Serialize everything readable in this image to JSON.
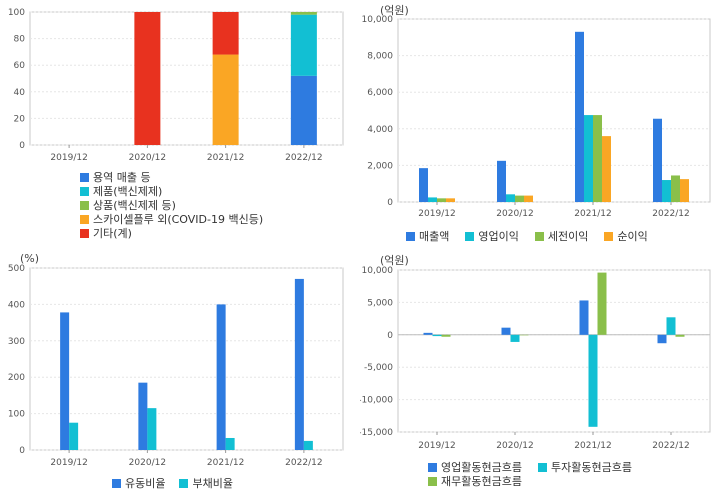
{
  "chart_data": [
    {
      "id": "chart1",
      "type": "bar",
      "stacked": true,
      "categories": [
        "2019/12",
        "2020/12",
        "2021/12",
        "2022/12"
      ],
      "ylim": [
        0,
        100
      ],
      "yticks": [
        "0",
        "20",
        "40",
        "60",
        "80",
        "100"
      ],
      "series": [
        {
          "name": "용역 매출 등",
          "color": "#2E7BE0",
          "values": [
            0,
            0,
            0,
            52
          ]
        },
        {
          "name": "제품(백신제제)",
          "color": "#12BFD3",
          "values": [
            0,
            0,
            0,
            46
          ]
        },
        {
          "name": "상품(백신제제 등)",
          "color": "#8ABF4A",
          "values": [
            0,
            0,
            0,
            2
          ]
        },
        {
          "name": "스카이셀플루 외(COVID-19 백신등)",
          "color": "#FAA624",
          "values": [
            0,
            0,
            68,
            0
          ]
        },
        {
          "name": "기타(계)",
          "color": "#E8321F",
          "values": [
            0,
            100,
            32,
            0
          ]
        }
      ],
      "legend_position": "bottom"
    },
    {
      "id": "chart2",
      "type": "bar",
      "unit": "(억원)",
      "categories": [
        "2019/12",
        "2020/12",
        "2021/12",
        "2022/12"
      ],
      "ylim": [
        0,
        10000
      ],
      "yticks": [
        "0",
        "2,000",
        "4,000",
        "6,000",
        "8,000",
        "10,000"
      ],
      "series": [
        {
          "name": "매출액",
          "color": "#2E7BE0",
          "values": [
            1850,
            2250,
            9300,
            4550
          ]
        },
        {
          "name": "영업이익",
          "color": "#12BFD3",
          "values": [
            250,
            420,
            4750,
            1200
          ]
        },
        {
          "name": "세전이익",
          "color": "#8ABF4A",
          "values": [
            200,
            350,
            4750,
            1450
          ]
        },
        {
          "name": "순이익",
          "color": "#FAA624",
          "values": [
            200,
            350,
            3600,
            1250
          ]
        }
      ],
      "legend_position": "bottom"
    },
    {
      "id": "chart3",
      "type": "bar",
      "unit": "(%)",
      "categories": [
        "2019/12",
        "2020/12",
        "2021/12",
        "2022/12"
      ],
      "ylim": [
        0,
        500
      ],
      "yticks": [
        "0",
        "100",
        "200",
        "300",
        "400",
        "500"
      ],
      "series": [
        {
          "name": "유동비율",
          "color": "#2E7BE0",
          "values": [
            378,
            185,
            400,
            470
          ]
        },
        {
          "name": "부채비율",
          "color": "#12BFD3",
          "values": [
            75,
            115,
            33,
            25
          ]
        }
      ],
      "legend_position": "bottom"
    },
    {
      "id": "chart4",
      "type": "bar",
      "unit": "(억원)",
      "categories": [
        "2019/12",
        "2020/12",
        "2021/12",
        "2022/12"
      ],
      "ylim": [
        -15000,
        10000
      ],
      "yticks": [
        "-15,000",
        "-10,000",
        "-5,000",
        "0",
        "5,000",
        "10,000"
      ],
      "series": [
        {
          "name": "영업활동현금흐름",
          "color": "#2E7BE0",
          "values": [
            300,
            1100,
            5300,
            -1300
          ]
        },
        {
          "name": "투자활동현금흐름",
          "color": "#12BFD3",
          "values": [
            -200,
            -1100,
            -14200,
            2700
          ]
        },
        {
          "name": "재무활동현금흐름",
          "color": "#8ABF4A",
          "values": [
            -300,
            0,
            9600,
            -300
          ]
        }
      ],
      "legend_position": "bottom"
    }
  ]
}
